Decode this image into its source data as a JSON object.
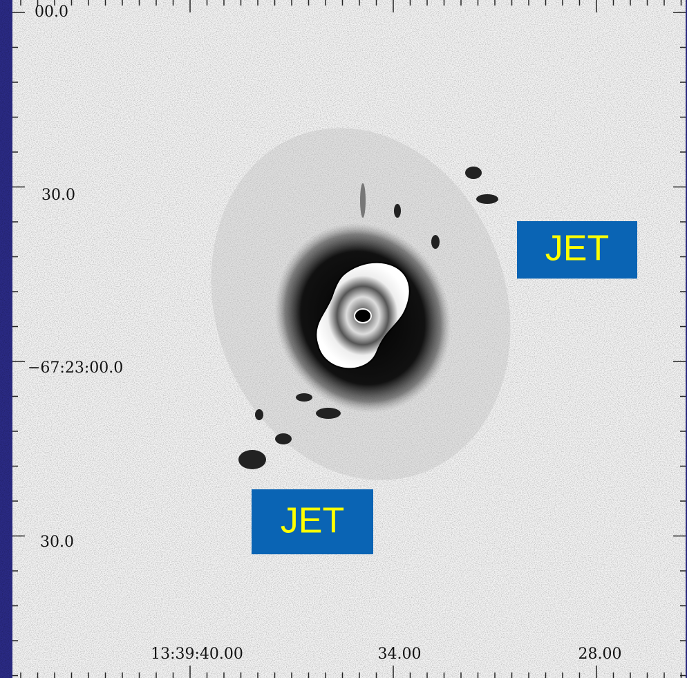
{
  "image": {
    "y_labels": [
      "00.0",
      "30.0",
      "−67:23:00.0",
      "30.0"
    ],
    "x_labels": [
      "13:39:40.00",
      "34.00",
      "28.00"
    ],
    "annotations": [
      "JET",
      "JET"
    ]
  }
}
